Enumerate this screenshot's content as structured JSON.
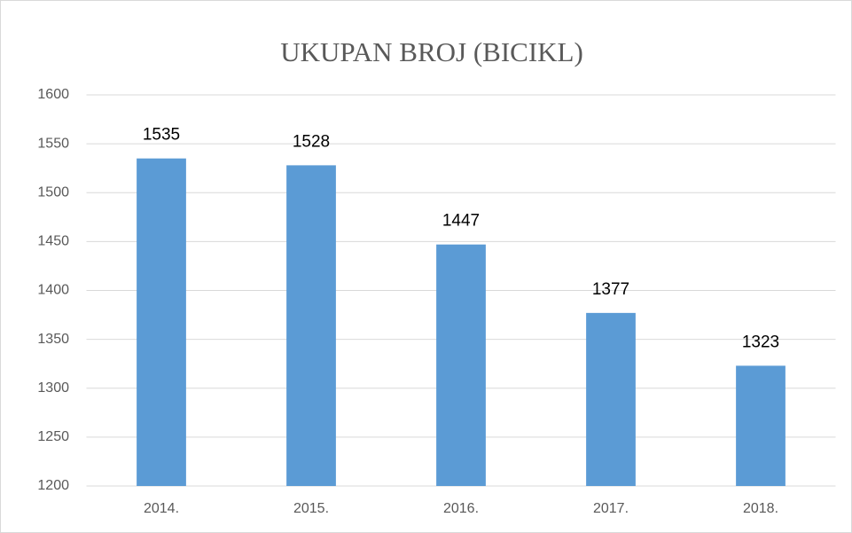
{
  "chart_data": {
    "type": "bar",
    "title": "UKUPAN BROJ (BICIKL)",
    "categories": [
      "2014.",
      "2015.",
      "2016.",
      "2017.",
      "2018."
    ],
    "values": [
      1535,
      1528,
      1447,
      1377,
      1323
    ],
    "color": "#5b9bd5",
    "ylim": [
      1200,
      1600
    ],
    "yticks": [
      1200,
      1250,
      1300,
      1350,
      1400,
      1450,
      1500,
      1550,
      1600
    ],
    "grid": true
  }
}
